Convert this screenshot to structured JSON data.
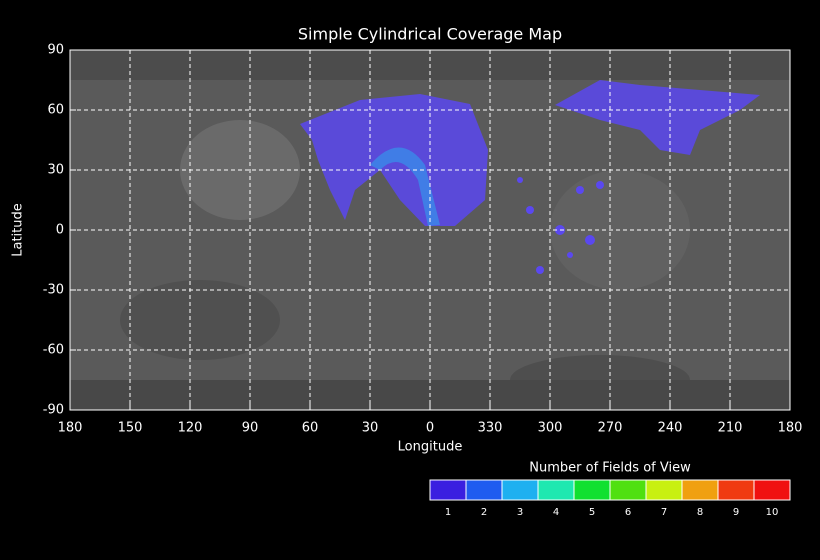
{
  "chart_data": {
    "type": "map",
    "title": "Simple Cylindrical Coverage Map",
    "xlabel": "Longitude",
    "ylabel": "Latitude",
    "xlim": [
      180,
      -180
    ],
    "xticks": [
      180,
      150,
      120,
      90,
      60,
      30,
      0,
      {
        "value": -30,
        "label": "330"
      },
      {
        "value": -60,
        "label": "300"
      },
      {
        "value": -90,
        "label": "270"
      },
      {
        "value": -120,
        "label": "240"
      },
      {
        "value": -150,
        "label": "210"
      },
      {
        "value": -180,
        "label": "180"
      }
    ],
    "ylim": [
      -90,
      90
    ],
    "yticks": [
      90,
      60,
      30,
      0,
      -30,
      -60,
      -90
    ],
    "grid": true,
    "colorbar": {
      "title": "Number of Fields of View",
      "labels": [
        1,
        2,
        3,
        4,
        5,
        6,
        7,
        8,
        9,
        10
      ],
      "colors": [
        "#3a1fe0",
        "#1f5cf0",
        "#1fb0f0",
        "#1fe8b0",
        "#10e030",
        "#50e010",
        "#c8f010",
        "#f0a010",
        "#f03a10",
        "#f01010"
      ]
    }
  }
}
